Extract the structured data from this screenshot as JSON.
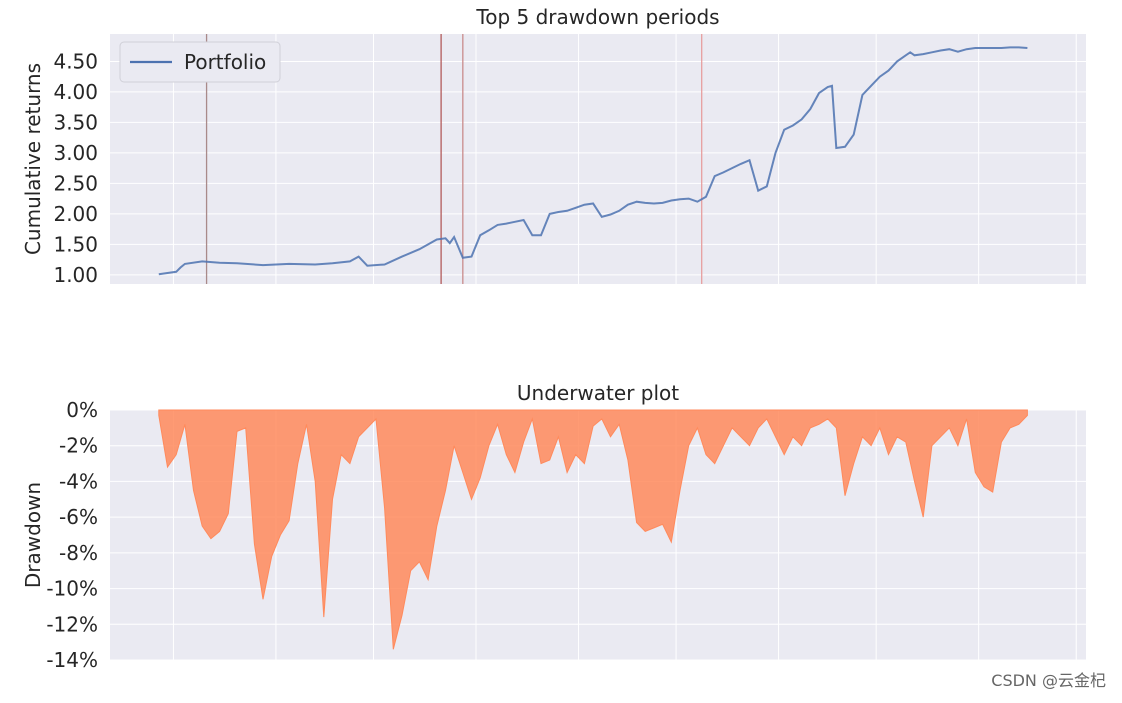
{
  "watermark": "CSDN @云金杞",
  "colors": {
    "panel_bg": "#EAEAF2",
    "grid": "#FFFFFF",
    "portfolio_line": "#4C72B0",
    "drawdown_fill": "#FF8A5C",
    "drawdown_line": "#FF8A5C",
    "period_lines": [
      "#A98A8A",
      "#B35B5B",
      "#C98B8B",
      "#E79F9F"
    ]
  },
  "chart_data": [
    {
      "type": "line",
      "title": "Top 5 drawdown periods",
      "xlabel": "",
      "ylabel": "Cumulative returns",
      "legend": {
        "position": "top-left",
        "entries": [
          "Portfolio"
        ]
      },
      "grid": true,
      "ylim": [
        0.85,
        4.95
      ],
      "yticks": [
        1.0,
        1.5,
        2.0,
        2.5,
        3.0,
        3.5,
        4.0,
        4.5
      ],
      "ytick_labels": [
        "1.00",
        "1.50",
        "2.00",
        "2.50",
        "3.00",
        "3.50",
        "4.00",
        "4.50"
      ],
      "series": [
        {
          "name": "Portfolio",
          "x": [
            0.0,
            0.01,
            0.02,
            0.025,
            0.03,
            0.05,
            0.07,
            0.09,
            0.12,
            0.15,
            0.18,
            0.2,
            0.22,
            0.23,
            0.24,
            0.26,
            0.28,
            0.3,
            0.31,
            0.32,
            0.33,
            0.335,
            0.34,
            0.35,
            0.36,
            0.37,
            0.38,
            0.39,
            0.4,
            0.41,
            0.42,
            0.43,
            0.44,
            0.45,
            0.46,
            0.47,
            0.48,
            0.49,
            0.5,
            0.51,
            0.52,
            0.53,
            0.54,
            0.55,
            0.56,
            0.57,
            0.58,
            0.59,
            0.6,
            0.61,
            0.62,
            0.63,
            0.64,
            0.65,
            0.66,
            0.67,
            0.68,
            0.69,
            0.7,
            0.71,
            0.72,
            0.73,
            0.74,
            0.75,
            0.76,
            0.77,
            0.775,
            0.78,
            0.79,
            0.8,
            0.81,
            0.82,
            0.83,
            0.84,
            0.85,
            0.86,
            0.865,
            0.87,
            0.88,
            0.89,
            0.9,
            0.91,
            0.92,
            0.93,
            0.94,
            0.95,
            0.96,
            0.97,
            0.98,
            0.99,
            1.0
          ],
          "values": [
            1.01,
            1.03,
            1.05,
            1.12,
            1.18,
            1.22,
            1.2,
            1.19,
            1.16,
            1.18,
            1.17,
            1.19,
            1.22,
            1.3,
            1.15,
            1.17,
            1.3,
            1.42,
            1.5,
            1.58,
            1.6,
            1.52,
            1.62,
            1.28,
            1.3,
            1.65,
            1.73,
            1.82,
            1.84,
            1.87,
            1.9,
            1.65,
            1.65,
            2.0,
            2.03,
            2.05,
            2.1,
            2.15,
            2.17,
            1.95,
            1.99,
            2.05,
            2.15,
            2.2,
            2.18,
            2.17,
            2.18,
            2.22,
            2.24,
            2.25,
            2.2,
            2.28,
            2.62,
            2.68,
            2.75,
            2.82,
            2.88,
            2.38,
            2.45,
            3.0,
            3.38,
            3.45,
            3.55,
            3.72,
            3.98,
            4.08,
            4.1,
            3.08,
            3.1,
            3.3,
            3.95,
            4.1,
            4.25,
            4.35,
            4.5,
            4.6,
            4.65,
            4.6,
            4.62,
            4.65,
            4.68,
            4.7,
            4.66,
            4.7,
            4.72,
            4.72,
            4.72,
            4.72,
            4.73,
            4.73,
            4.72
          ]
        }
      ],
      "period_markers_x": [
        0.055,
        0.325,
        0.35,
        0.625
      ]
    },
    {
      "type": "area",
      "title": "Underwater plot",
      "xlabel": "",
      "ylabel": "Drawdown",
      "grid": true,
      "ylim": [
        -14,
        0
      ],
      "yticks": [
        0,
        -2,
        -4,
        -6,
        -8,
        -10,
        -12,
        -14
      ],
      "ytick_labels": [
        "0%",
        "-2%",
        "-4%",
        "-6%",
        "-8%",
        "-10%",
        "-12%",
        "-14%"
      ],
      "series": [
        {
          "name": "",
          "x": [
            0.0,
            0.01,
            0.02,
            0.03,
            0.04,
            0.05,
            0.06,
            0.07,
            0.08,
            0.09,
            0.1,
            0.11,
            0.12,
            0.13,
            0.14,
            0.15,
            0.16,
            0.17,
            0.18,
            0.19,
            0.2,
            0.21,
            0.22,
            0.23,
            0.24,
            0.25,
            0.26,
            0.27,
            0.28,
            0.29,
            0.3,
            0.31,
            0.32,
            0.33,
            0.34,
            0.35,
            0.36,
            0.37,
            0.38,
            0.39,
            0.4,
            0.41,
            0.42,
            0.43,
            0.44,
            0.45,
            0.46,
            0.47,
            0.48,
            0.49,
            0.5,
            0.51,
            0.52,
            0.53,
            0.54,
            0.55,
            0.56,
            0.57,
            0.58,
            0.59,
            0.6,
            0.61,
            0.62,
            0.63,
            0.64,
            0.65,
            0.66,
            0.67,
            0.68,
            0.69,
            0.7,
            0.71,
            0.72,
            0.73,
            0.74,
            0.75,
            0.76,
            0.77,
            0.78,
            0.79,
            0.8,
            0.81,
            0.82,
            0.83,
            0.84,
            0.85,
            0.86,
            0.87,
            0.88,
            0.89,
            0.9,
            0.91,
            0.92,
            0.93,
            0.94,
            0.95,
            0.96,
            0.97,
            0.98,
            0.99,
            1.0
          ],
          "values": [
            -0.3,
            -3.2,
            -2.5,
            -0.8,
            -4.5,
            -6.5,
            -7.2,
            -6.8,
            -5.8,
            -1.2,
            -1.0,
            -7.5,
            -10.6,
            -8.2,
            -7.0,
            -6.2,
            -3.0,
            -0.8,
            -4.0,
            -11.6,
            -5.0,
            -2.5,
            -3.0,
            -1.5,
            -1.0,
            -0.5,
            -5.5,
            -13.4,
            -11.5,
            -9.0,
            -8.5,
            -9.5,
            -6.5,
            -4.5,
            -2.0,
            -3.5,
            -5.0,
            -3.8,
            -2.0,
            -0.8,
            -2.5,
            -3.5,
            -1.8,
            -0.5,
            -3.0,
            -2.8,
            -1.5,
            -3.5,
            -2.5,
            -3.0,
            -0.9,
            -0.5,
            -1.5,
            -0.8,
            -2.8,
            -6.3,
            -6.8,
            -6.6,
            -6.4,
            -7.4,
            -4.5,
            -2.0,
            -1.0,
            -2.5,
            -3.0,
            -2.0,
            -1.0,
            -1.5,
            -2.0,
            -1.0,
            -0.5,
            -1.5,
            -2.5,
            -1.5,
            -2.0,
            -1.0,
            -0.8,
            -0.5,
            -1.0,
            -4.8,
            -3.0,
            -1.5,
            -2.0,
            -1.0,
            -2.5,
            -1.5,
            -1.8,
            -4.0,
            -6.0,
            -2.0,
            -1.5,
            -1.0,
            -2.0,
            -0.5,
            -3.5,
            -4.3,
            -4.6,
            -1.8,
            -1.0,
            -0.8,
            -0.3
          ]
        }
      ]
    }
  ]
}
